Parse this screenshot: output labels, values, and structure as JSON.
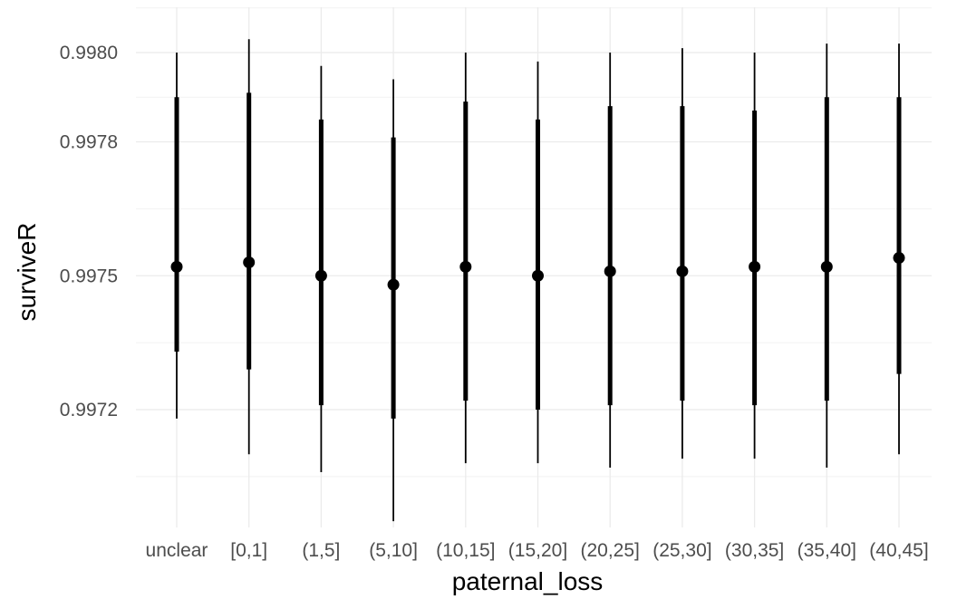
{
  "chart_data": {
    "type": "pointrange",
    "xlabel": "paternal_loss",
    "ylabel": "surviveR",
    "ylim": [
      0.99698,
      0.99813
    ],
    "yticks": [
      0.9972,
      0.9975,
      0.9978,
      0.998
    ],
    "ytick_labels": [
      "0.9972",
      "0.9975",
      "0.9978",
      "0.9980"
    ],
    "grid": true,
    "legend": "none",
    "categories": [
      "unclear",
      "[0,1]",
      "(1,5]",
      "(5,10]",
      "(10,15]",
      "(15,20]",
      "(20,25]",
      "(25,30]",
      "(30,35]",
      "(35,40]",
      "(40,45]"
    ],
    "series": [
      {
        "point": [
          0.99752,
          0.99753,
          0.9975,
          0.99748,
          0.99752,
          0.9975,
          0.99751,
          0.99751,
          0.99752,
          0.99752,
          0.99754
        ],
        "inner_low": [
          0.99733,
          0.99729,
          0.99721,
          0.99718,
          0.99722,
          0.9972,
          0.99721,
          0.99722,
          0.99721,
          0.99722,
          0.99728
        ],
        "inner_high": [
          0.9979,
          0.99791,
          0.99785,
          0.99781,
          0.99789,
          0.99785,
          0.99788,
          0.99788,
          0.99787,
          0.9979,
          0.9979
        ],
        "outer_low": [
          0.99718,
          0.9971,
          0.99706,
          0.99695,
          0.99708,
          0.99708,
          0.99707,
          0.99709,
          0.99709,
          0.99707,
          0.9971
        ],
        "outer_high": [
          0.998,
          0.99803,
          0.99797,
          0.99794,
          0.998,
          0.99798,
          0.998,
          0.99801,
          0.998,
          0.99802,
          0.99802
        ]
      }
    ],
    "colors": {
      "mark": "#000000",
      "grid_major": "#ebebeb",
      "grid_minor": "#f2f2f2",
      "tick_text": "#4d4d4d"
    }
  }
}
